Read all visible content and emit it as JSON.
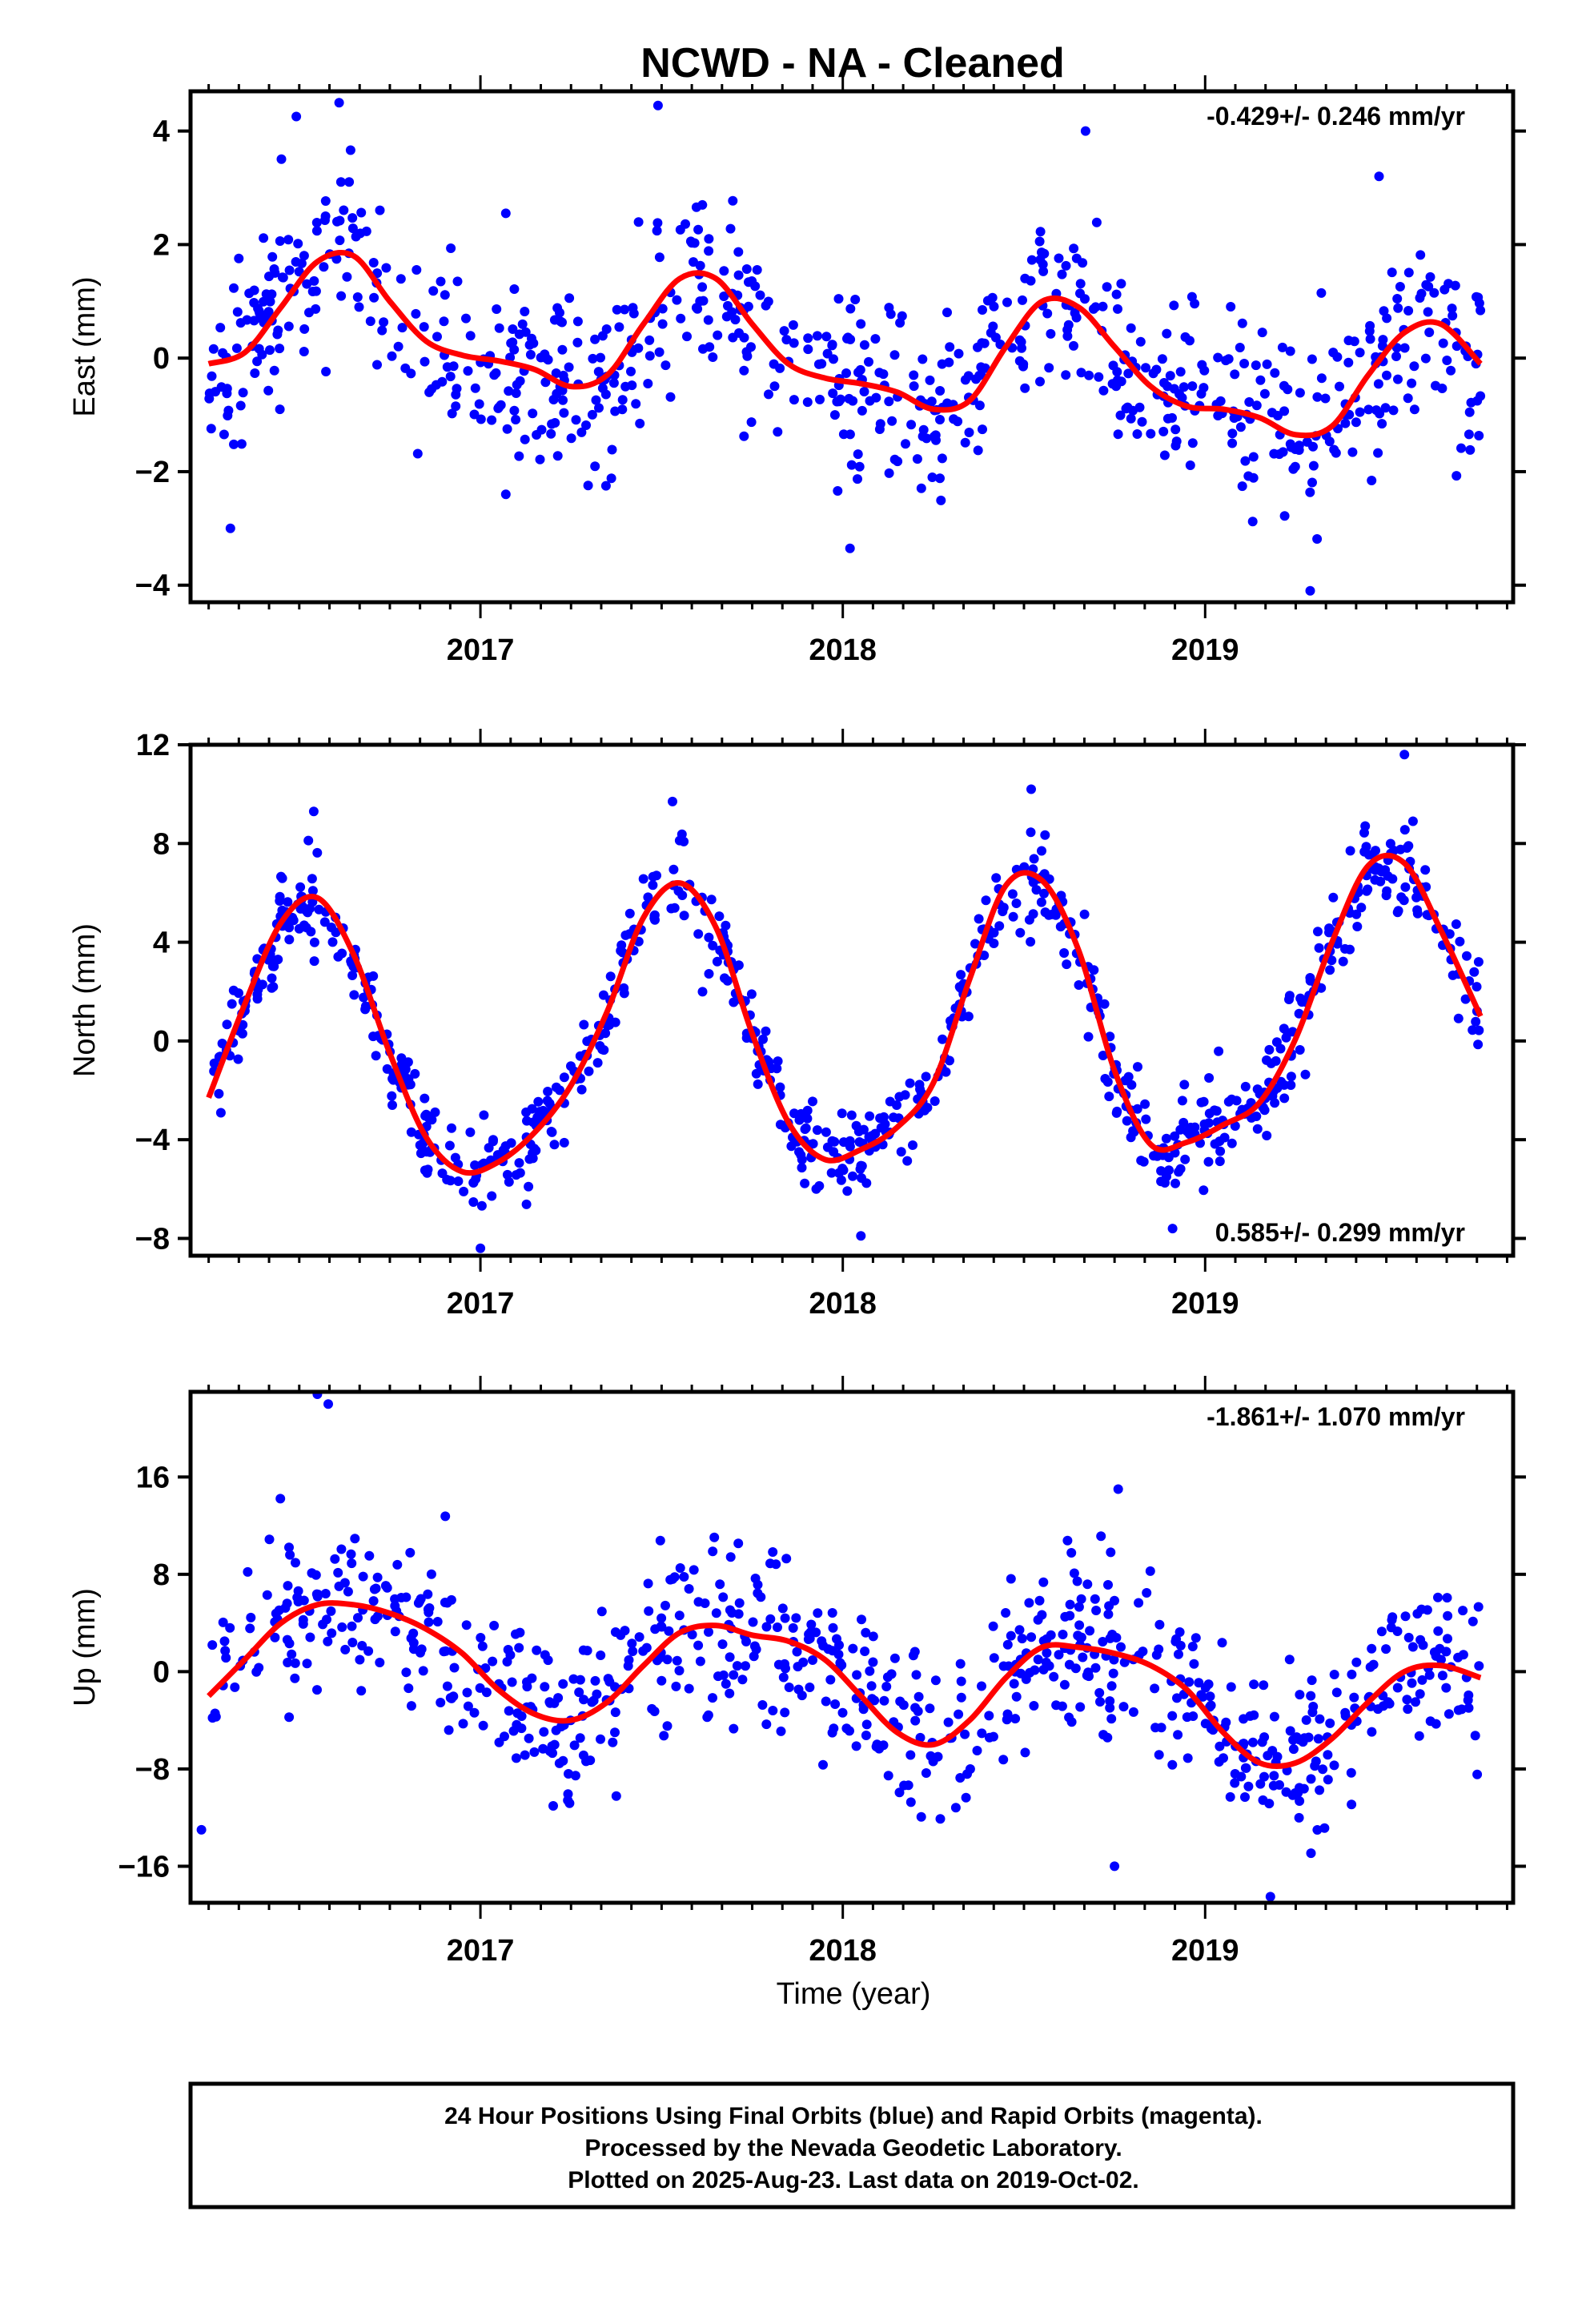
{
  "title": "NCWD  - NA - Cleaned",
  "xlabel": "Time (year)",
  "footer_lines": [
    "24 Hour Positions Using Final Orbits (blue) and Rapid Orbits (magenta).",
    "Processed by the Nevada Geodetic Laboratory.",
    "Plotted on 2025-Aug-23. Last data on 2019-Oct-02."
  ],
  "colors": {
    "points": "#0000ff",
    "model": "#ff0000",
    "frame": "#000000"
  },
  "chart_data": [
    {
      "type": "scatter",
      "ylabel": "East (mm)",
      "rate_text": "-0.429+/- 0.246 mm/yr",
      "rate_position": "top-right",
      "xlim": [
        2016.2,
        2019.85
      ],
      "ylim": [
        -4.3,
        4.7
      ],
      "yticks": [
        4,
        2,
        0,
        -2,
        -4
      ],
      "xticks": [
        2017,
        2018,
        2019
      ],
      "model_curve": {
        "x": [
          2016.25,
          2016.35,
          2016.45,
          2016.55,
          2016.65,
          2016.75,
          2016.85,
          2016.95,
          2017.05,
          2017.15,
          2017.25,
          2017.35,
          2017.45,
          2017.55,
          2017.65,
          2017.75,
          2017.85,
          2017.95,
          2018.05,
          2018.15,
          2018.25,
          2018.35,
          2018.45,
          2018.55,
          2018.65,
          2018.75,
          2018.85,
          2018.95,
          2019.05,
          2019.15,
          2019.25,
          2019.35,
          2019.45,
          2019.55,
          2019.65,
          2019.76
        ],
        "y": [
          -0.1,
          0.1,
          0.9,
          1.7,
          1.8,
          1.0,
          0.3,
          0.05,
          -0.05,
          -0.2,
          -0.5,
          -0.3,
          0.6,
          1.4,
          1.4,
          0.6,
          -0.1,
          -0.35,
          -0.45,
          -0.6,
          -0.9,
          -0.75,
          0.2,
          1.0,
          0.9,
          0.2,
          -0.5,
          -0.85,
          -0.9,
          -1.05,
          -1.35,
          -1.2,
          -0.3,
          0.45,
          0.6,
          -0.1
        ]
      },
      "points": {
        "seed": 11,
        "count": 760,
        "noise_sd": 0.85,
        "outliers": [
          [
            2016.31,
            -3.0
          ],
          [
            2016.61,
            4.5
          ],
          [
            2017.49,
            4.45
          ],
          [
            2018.67,
            4.0
          ],
          [
            2019.48,
            3.2
          ],
          [
            2019.29,
            -4.1
          ],
          [
            2018.02,
            -3.35
          ],
          [
            2017.07,
            -2.4
          ]
        ]
      }
    },
    {
      "type": "scatter",
      "ylabel": "North (mm)",
      "rate_text": "0.585+/- 0.299 mm/yr",
      "rate_position": "bottom-right",
      "xlim": [
        2016.2,
        2019.85
      ],
      "ylim": [
        -8.7,
        12.0
      ],
      "yticks": [
        12,
        8,
        4,
        0,
        -4,
        -8
      ],
      "xticks": [
        2017,
        2018,
        2019
      ],
      "model_curve": {
        "x": [
          2016.25,
          2016.35,
          2016.45,
          2016.55,
          2016.65,
          2016.75,
          2016.85,
          2016.95,
          2017.05,
          2017.15,
          2017.25,
          2017.35,
          2017.45,
          2017.55,
          2017.65,
          2017.75,
          2017.85,
          2017.95,
          2018.05,
          2018.15,
          2018.25,
          2018.35,
          2018.45,
          2018.55,
          2018.65,
          2018.75,
          2018.85,
          2018.95,
          2019.05,
          2019.15,
          2019.25,
          2019.35,
          2019.45,
          2019.55,
          2019.65,
          2019.76
        ],
        "y": [
          -2.3,
          1.5,
          4.8,
          5.8,
          3.5,
          -0.5,
          -3.9,
          -5.3,
          -4.9,
          -3.7,
          -1.8,
          1.2,
          5.0,
          6.4,
          4.6,
          0.3,
          -3.3,
          -4.8,
          -4.4,
          -3.5,
          -1.7,
          2.5,
          6.3,
          6.5,
          3.7,
          -1.2,
          -4.2,
          -4.1,
          -3.4,
          -2.5,
          0.1,
          4.0,
          7.1,
          7.2,
          4.5,
          1.0
        ]
      },
      "points": {
        "seed": 23,
        "count": 800,
        "noise_sd": 0.9,
        "outliers": [
          [
            2016.54,
            9.3
          ],
          [
            2017.53,
            9.7
          ],
          [
            2018.52,
            10.2
          ],
          [
            2019.55,
            11.6
          ],
          [
            2017.0,
            -8.4
          ],
          [
            2018.05,
            -7.9
          ],
          [
            2018.91,
            -7.6
          ]
        ]
      }
    },
    {
      "type": "scatter",
      "ylabel": "Up (mm)",
      "rate_text": "-1.861+/- 1.070 mm/yr",
      "rate_position": "top-right",
      "xlim": [
        2016.2,
        2019.85
      ],
      "ylim": [
        -19,
        23
      ],
      "yticks": [
        16,
        8,
        0,
        -8,
        -16
      ],
      "xticks": [
        2017,
        2018,
        2019
      ],
      "model_curve": {
        "x": [
          2016.25,
          2016.35,
          2016.45,
          2016.55,
          2016.65,
          2016.75,
          2016.85,
          2016.95,
          2017.05,
          2017.15,
          2017.25,
          2017.35,
          2017.45,
          2017.55,
          2017.65,
          2017.75,
          2017.85,
          2017.95,
          2018.05,
          2018.15,
          2018.25,
          2018.35,
          2018.45,
          2018.55,
          2018.65,
          2018.75,
          2018.85,
          2018.95,
          2019.05,
          2019.15,
          2019.25,
          2019.35,
          2019.45,
          2019.55,
          2019.65,
          2019.76
        ],
        "y": [
          -2.0,
          1.0,
          4.0,
          5.5,
          5.5,
          4.8,
          3.5,
          1.5,
          -1.5,
          -3.5,
          -4.0,
          -2.5,
          0.5,
          3.2,
          3.8,
          3.0,
          2.5,
          1.0,
          -2.0,
          -5.0,
          -6.0,
          -4.0,
          -0.5,
          2.0,
          2.0,
          1.5,
          0.5,
          -1.5,
          -5.0,
          -7.5,
          -7.5,
          -5.5,
          -2.5,
          0.0,
          0.5,
          -0.5
        ]
      },
      "points": {
        "seed": 37,
        "count": 760,
        "noise_sd": 3.4,
        "outliers": [
          [
            2016.55,
            22.8
          ],
          [
            2016.58,
            22.0
          ],
          [
            2018.76,
            15.0
          ],
          [
            2018.75,
            -16.0
          ],
          [
            2019.18,
            -18.5
          ],
          [
            2016.23,
            -13.0
          ]
        ]
      }
    }
  ]
}
